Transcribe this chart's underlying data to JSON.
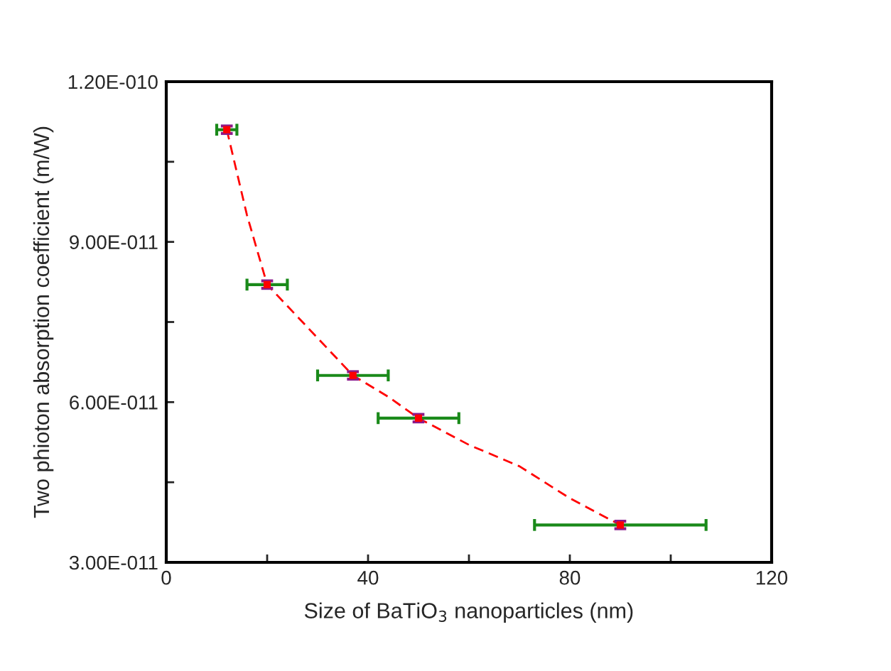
{
  "chart_data": {
    "type": "scatter",
    "xlabel": "Size of BaTiO$_{3}$ nanoparticles (nm)",
    "ylabel": "Two phioton absorption coefficient (m/W)",
    "xlim": [
      0,
      120
    ],
    "xticks": [
      0,
      {
        "value": 20,
        "label": null
      },
      40,
      {
        "value": 60,
        "label": null
      },
      80,
      {
        "value": 100,
        "label": null
      },
      120
    ],
    "ylim": [
      3e-11,
      1.2e-10
    ],
    "yticks": [
      {
        "value": 3e-11,
        "label": "3.00E-011"
      },
      {
        "value": 4.5e-11,
        "label": null
      },
      {
        "value": 6e-11,
        "label": "6.00E-011"
      },
      {
        "value": 7.5e-11,
        "label": null
      },
      {
        "value": 9e-11,
        "label": "9.00E-011"
      },
      {
        "value": 1.05e-10,
        "label": null
      },
      {
        "value": 1.2e-10,
        "label": "1.20E-010"
      }
    ],
    "grid": false,
    "series": [
      {
        "type": "line",
        "color": "#ff0000",
        "line_style": "dashed",
        "marker": "none",
        "x": [
          12,
          16,
          20,
          28,
          37,
          44,
          50,
          60,
          70,
          80,
          90
        ],
        "values": [
          1.11e-10,
          9.5e-11,
          8.2e-11,
          7.4e-11,
          6.5e-11,
          6.1e-11,
          5.7e-11,
          5.2e-11,
          4.8e-11,
          4.2e-11,
          3.7e-11
        ]
      },
      {
        "color": "#ff0000",
        "marker": "square",
        "x": [
          12,
          20,
          37,
          50,
          90
        ],
        "values": [
          1.11e-10,
          8.2e-11,
          6.5e-11,
          5.7e-11,
          3.7e-11
        ],
        "errors": [
          7e-13,
          7e-13,
          7e-13,
          7e-13,
          7e-13
        ],
        "xerrors": [
          2,
          4,
          7,
          8,
          17
        ]
      }
    ]
  }
}
